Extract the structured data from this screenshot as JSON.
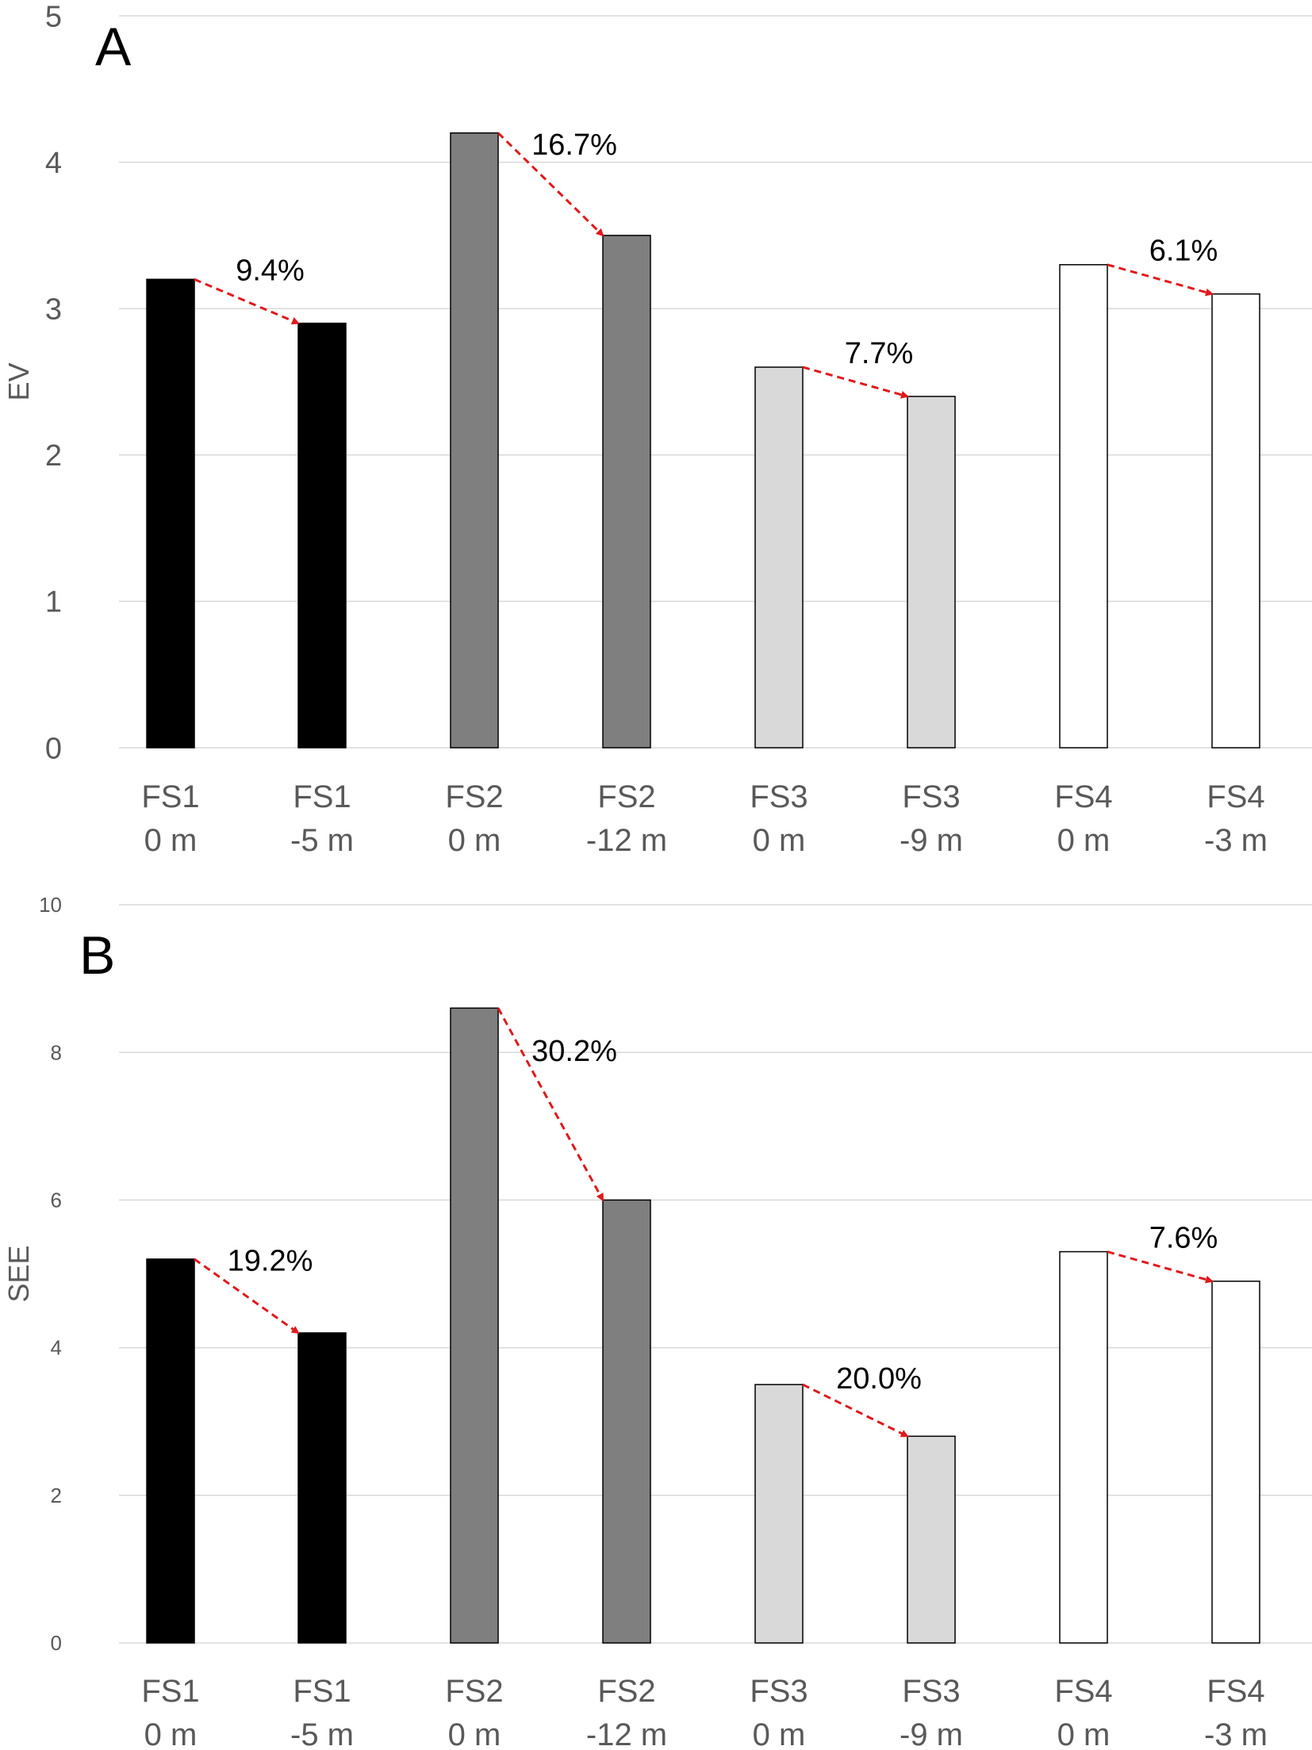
{
  "colors": {
    "FS1": "#000000",
    "FS2": "#7f7f7f",
    "FS3": "#d9d9d9",
    "FS4": "#ffffff",
    "arrow": "#e0191c",
    "grid": "#d9d9d9",
    "axis_text": "#595959"
  },
  "chart_data": [
    {
      "type": "bar",
      "panel_label": "A",
      "ylabel": "EV",
      "ylim": [
        0,
        5
      ],
      "yticks": [
        "0",
        "1",
        "2",
        "3",
        "4",
        "5"
      ],
      "grid": true,
      "categories": [
        [
          "FS1",
          "0 m"
        ],
        [
          "FS1",
          "-5 m"
        ],
        [
          "FS2",
          "0 m"
        ],
        [
          "FS2",
          "-12 m"
        ],
        [
          "FS3",
          "0 m"
        ],
        [
          "FS3",
          "-9 m"
        ],
        [
          "FS4",
          "0 m"
        ],
        [
          "FS4",
          "-3 m"
        ]
      ],
      "bar_groups": [
        "FS1",
        "FS1",
        "FS2",
        "FS2",
        "FS3",
        "FS3",
        "FS4",
        "FS4"
      ],
      "values": [
        3.2,
        2.9,
        4.2,
        3.5,
        2.6,
        2.4,
        3.3,
        3.1
      ],
      "annotations": [
        {
          "from": 0,
          "to": 1,
          "text": "9.4%"
        },
        {
          "from": 2,
          "to": 3,
          "text": "16.7%"
        },
        {
          "from": 4,
          "to": 5,
          "text": "7.7%"
        },
        {
          "from": 6,
          "to": 7,
          "text": "6.1%"
        }
      ]
    },
    {
      "type": "bar",
      "panel_label": "B",
      "ylabel": "SEE",
      "ylim": [
        0,
        10
      ],
      "yticks": [
        "0",
        "2",
        "4",
        "6",
        "8",
        "10"
      ],
      "grid": true,
      "categories": [
        [
          "FS1",
          "0 m"
        ],
        [
          "FS1",
          "-5 m"
        ],
        [
          "FS2",
          "0 m"
        ],
        [
          "FS2",
          "-12 m"
        ],
        [
          "FS3",
          "0 m"
        ],
        [
          "FS3",
          "-9 m"
        ],
        [
          "FS4",
          "0 m"
        ],
        [
          "FS4",
          "-3 m"
        ]
      ],
      "bar_groups": [
        "FS1",
        "FS1",
        "FS2",
        "FS2",
        "FS3",
        "FS3",
        "FS4",
        "FS4"
      ],
      "values": [
        5.2,
        4.2,
        8.6,
        6.0,
        3.5,
        2.8,
        5.3,
        4.9
      ],
      "annotations": [
        {
          "from": 0,
          "to": 1,
          "text": "19.2%"
        },
        {
          "from": 2,
          "to": 3,
          "text": "30.2%"
        },
        {
          "from": 4,
          "to": 5,
          "text": "20.0%"
        },
        {
          "from": 6,
          "to": 7,
          "text": "7.6%"
        }
      ]
    }
  ]
}
